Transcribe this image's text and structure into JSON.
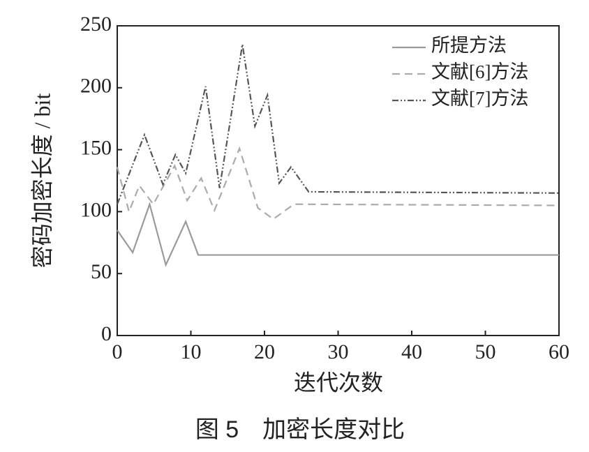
{
  "chart_data": {
    "type": "line",
    "xlabel": "迭代次数",
    "ylabel": "密码加密长度 / bit",
    "caption": "图 5　加密长度对比",
    "xlim": [
      0,
      60
    ],
    "xticks": [
      0,
      10,
      20,
      30,
      40,
      50,
      60
    ],
    "ylim": [
      0,
      250
    ],
    "yticks": [
      0,
      50,
      100,
      150,
      200,
      250
    ],
    "grid": false,
    "legend": "upper right",
    "series": [
      {
        "name": "所提方法",
        "color": "#9a9a9a",
        "style": "solid",
        "x": [
          0,
          2.1,
          4.4,
          6.6,
          9.3,
          11,
          60
        ],
        "values": [
          85,
          67,
          106,
          57,
          92,
          65,
          65
        ]
      },
      {
        "name": "文献[6]方法",
        "color": "#ababab",
        "style": "dashed",
        "x": [
          0,
          1.6,
          3,
          4.9,
          7.8,
          9.5,
          11.4,
          13.2,
          16.6,
          19.1,
          21.2,
          24,
          60
        ],
        "values": [
          136,
          100,
          121,
          106,
          137,
          109,
          127,
          101,
          151,
          103,
          94,
          106,
          105
        ]
      },
      {
        "name": "文献[7]方法",
        "color": "#555555",
        "style": "dashdotdot",
        "x": [
          0,
          3.7,
          6.2,
          7.9,
          9.3,
          12,
          13.9,
          17,
          18.7,
          20.4,
          22,
          23.6,
          26,
          60
        ],
        "values": [
          106,
          162,
          122,
          146,
          131,
          201,
          119,
          235,
          169,
          194,
          123,
          136,
          116,
          115
        ]
      }
    ]
  }
}
